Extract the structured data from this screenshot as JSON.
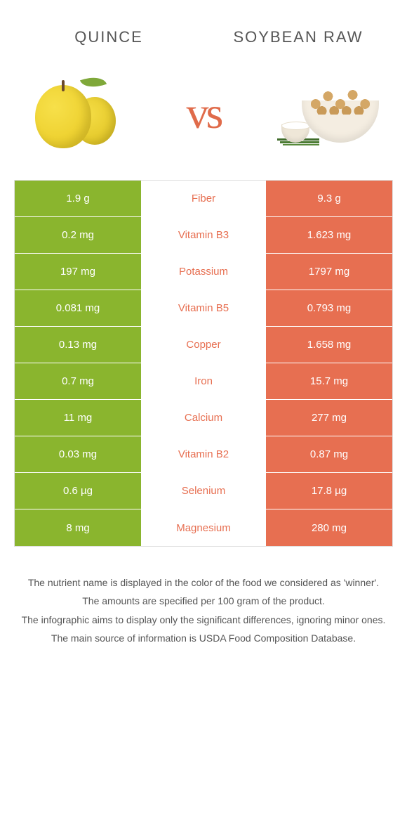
{
  "colors": {
    "left_bg": "#8ab52e",
    "right_bg": "#e76f51",
    "label_right_winner": "#e76f51",
    "vs_color": "#e06b4a"
  },
  "food_left": {
    "title": "QUINCE"
  },
  "food_right": {
    "title": "SOYBEAN RAW"
  },
  "vs_label": "vs",
  "rows": [
    {
      "left": "1.9 g",
      "label": "Fiber",
      "right": "9.3 g",
      "winner": "right"
    },
    {
      "left": "0.2 mg",
      "label": "Vitamin B3",
      "right": "1.623 mg",
      "winner": "right"
    },
    {
      "left": "197 mg",
      "label": "Potassium",
      "right": "1797 mg",
      "winner": "right"
    },
    {
      "left": "0.081 mg",
      "label": "Vitamin B5",
      "right": "0.793 mg",
      "winner": "right"
    },
    {
      "left": "0.13 mg",
      "label": "Copper",
      "right": "1.658 mg",
      "winner": "right"
    },
    {
      "left": "0.7 mg",
      "label": "Iron",
      "right": "15.7 mg",
      "winner": "right"
    },
    {
      "left": "11 mg",
      "label": "Calcium",
      "right": "277 mg",
      "winner": "right"
    },
    {
      "left": "0.03 mg",
      "label": "Vitamin B2",
      "right": "0.87 mg",
      "winner": "right"
    },
    {
      "left": "0.6 µg",
      "label": "Selenium",
      "right": "17.8 µg",
      "winner": "right"
    },
    {
      "left": "8 mg",
      "label": "Magnesium",
      "right": "280 mg",
      "winner": "right"
    }
  ],
  "footer": {
    "line1": "The nutrient name is displayed in the color of the food we considered as 'winner'.",
    "line2": "The amounts are specified per 100 gram of the product.",
    "line3": "The infographic aims to display only the significant differences, ignoring minor ones.",
    "line4": "The main source of information is USDA Food Composition Database."
  }
}
